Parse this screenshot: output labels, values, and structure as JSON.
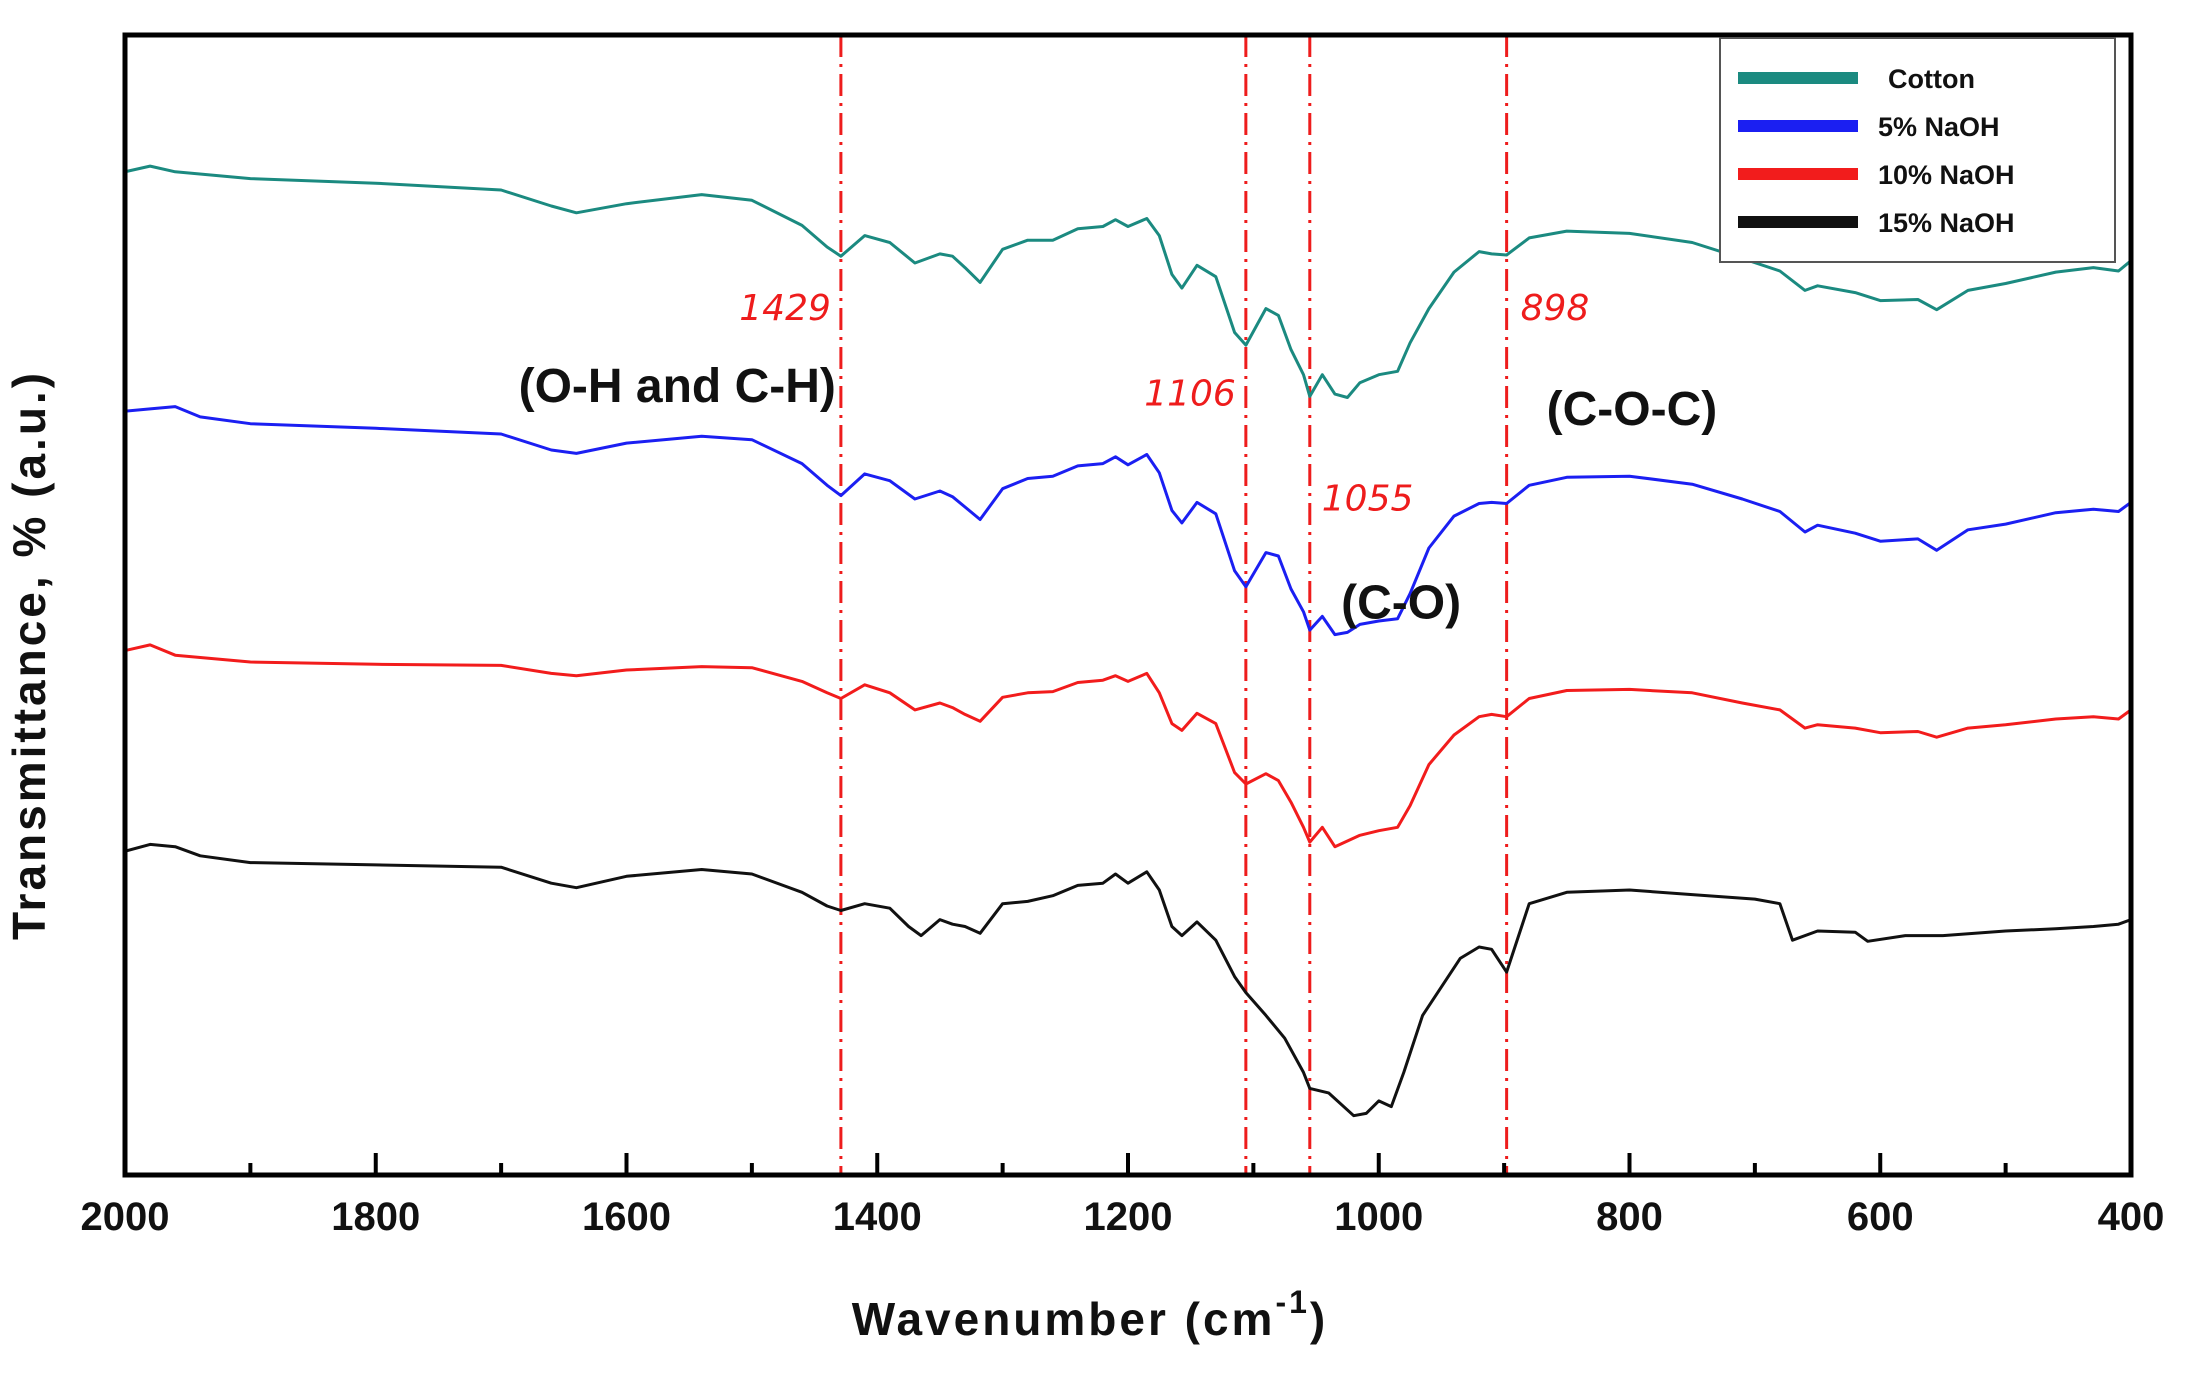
{
  "chart_data": {
    "type": "line",
    "title": "",
    "xlabel": "Wavenumber (cm",
    "xlabel_sup": "-1",
    "xlabel_close": ")",
    "ylabel": "Transmittance, % (a.u.)",
    "xlim": [
      2000,
      400
    ],
    "x_ticks": [
      2000,
      1800,
      1600,
      1400,
      1200,
      1000,
      800,
      600,
      400
    ],
    "x_tick_labels": [
      "2000",
      "1800",
      "1600",
      "1400",
      "1200",
      "1000",
      "800",
      "600",
      "400"
    ],
    "ylim": [
      0,
      100
    ],
    "y_ticks_shown": false,
    "legend_position": "top-right",
    "series": [
      {
        "name": "Cotton",
        "color": "#1b8a80",
        "points": [
          [
            2000,
            88
          ],
          [
            1980,
            88.5
          ],
          [
            1960,
            88
          ],
          [
            1900,
            87.4
          ],
          [
            1800,
            87
          ],
          [
            1700,
            86.4
          ],
          [
            1660,
            85
          ],
          [
            1640,
            84.4
          ],
          [
            1600,
            85.2
          ],
          [
            1540,
            86
          ],
          [
            1500,
            85.5
          ],
          [
            1460,
            83.3
          ],
          [
            1440,
            81.4
          ],
          [
            1429,
            80.6
          ],
          [
            1410,
            82.4
          ],
          [
            1390,
            81.8
          ],
          [
            1370,
            80
          ],
          [
            1350,
            80.8
          ],
          [
            1340,
            80.6
          ],
          [
            1330,
            79.6
          ],
          [
            1318,
            78.3
          ],
          [
            1300,
            81.2
          ],
          [
            1280,
            82
          ],
          [
            1260,
            82
          ],
          [
            1240,
            83
          ],
          [
            1220,
            83.2
          ],
          [
            1210,
            83.8
          ],
          [
            1200,
            83.2
          ],
          [
            1185,
            83.9
          ],
          [
            1175,
            82.4
          ],
          [
            1165,
            79
          ],
          [
            1157,
            77.8
          ],
          [
            1145,
            79.8
          ],
          [
            1130,
            78.8
          ],
          [
            1115,
            73.9
          ],
          [
            1106,
            72.8
          ],
          [
            1090,
            76
          ],
          [
            1080,
            75.4
          ],
          [
            1070,
            72.4
          ],
          [
            1060,
            70.2
          ],
          [
            1055,
            68.3
          ],
          [
            1045,
            70.2
          ],
          [
            1035,
            68.5
          ],
          [
            1025,
            68.2
          ],
          [
            1015,
            69.5
          ],
          [
            1000,
            70.2
          ],
          [
            985,
            70.5
          ],
          [
            975,
            73
          ],
          [
            960,
            76
          ],
          [
            940,
            79.2
          ],
          [
            920,
            81
          ],
          [
            910,
            80.8
          ],
          [
            898,
            80.7
          ],
          [
            880,
            82.2
          ],
          [
            850,
            82.8
          ],
          [
            800,
            82.6
          ],
          [
            750,
            81.8
          ],
          [
            710,
            80.4
          ],
          [
            680,
            79.3
          ],
          [
            660,
            77.6
          ],
          [
            650,
            78
          ],
          [
            620,
            77.4
          ],
          [
            600,
            76.7
          ],
          [
            570,
            76.8
          ],
          [
            555,
            75.9
          ],
          [
            530,
            77.6
          ],
          [
            500,
            78.2
          ],
          [
            460,
            79.2
          ],
          [
            430,
            79.6
          ],
          [
            410,
            79.3
          ],
          [
            400,
            80.2
          ]
        ]
      },
      {
        "name": "5% NaOH",
        "color": "#1b1ff2",
        "points": [
          [
            2000,
            67
          ],
          [
            1980,
            67.2
          ],
          [
            1960,
            67.4
          ],
          [
            1940,
            66.5
          ],
          [
            1900,
            65.9
          ],
          [
            1800,
            65.5
          ],
          [
            1700,
            65
          ],
          [
            1660,
            63.6
          ],
          [
            1640,
            63.3
          ],
          [
            1600,
            64.2
          ],
          [
            1540,
            64.8
          ],
          [
            1500,
            64.5
          ],
          [
            1460,
            62.4
          ],
          [
            1440,
            60.5
          ],
          [
            1429,
            59.6
          ],
          [
            1410,
            61.5
          ],
          [
            1390,
            60.9
          ],
          [
            1370,
            59.3
          ],
          [
            1350,
            60
          ],
          [
            1340,
            59.5
          ],
          [
            1330,
            58.6
          ],
          [
            1318,
            57.5
          ],
          [
            1300,
            60.2
          ],
          [
            1280,
            61.1
          ],
          [
            1260,
            61.3
          ],
          [
            1240,
            62.2
          ],
          [
            1220,
            62.4
          ],
          [
            1210,
            63
          ],
          [
            1200,
            62.3
          ],
          [
            1185,
            63.2
          ],
          [
            1175,
            61.6
          ],
          [
            1165,
            58.3
          ],
          [
            1157,
            57.2
          ],
          [
            1145,
            59
          ],
          [
            1130,
            58
          ],
          [
            1115,
            53
          ],
          [
            1106,
            51.6
          ],
          [
            1090,
            54.6
          ],
          [
            1080,
            54.3
          ],
          [
            1070,
            51.4
          ],
          [
            1060,
            49.4
          ],
          [
            1055,
            47.8
          ],
          [
            1045,
            49
          ],
          [
            1035,
            47.4
          ],
          [
            1025,
            47.6
          ],
          [
            1015,
            48.3
          ],
          [
            1000,
            48.6
          ],
          [
            985,
            48.8
          ],
          [
            975,
            51
          ],
          [
            960,
            55
          ],
          [
            940,
            57.8
          ],
          [
            920,
            58.9
          ],
          [
            910,
            59
          ],
          [
            898,
            58.9
          ],
          [
            880,
            60.5
          ],
          [
            850,
            61.2
          ],
          [
            800,
            61.3
          ],
          [
            750,
            60.6
          ],
          [
            710,
            59.3
          ],
          [
            680,
            58.2
          ],
          [
            660,
            56.4
          ],
          [
            650,
            57
          ],
          [
            620,
            56.3
          ],
          [
            600,
            55.6
          ],
          [
            570,
            55.8
          ],
          [
            555,
            54.8
          ],
          [
            530,
            56.6
          ],
          [
            500,
            57.1
          ],
          [
            460,
            58.1
          ],
          [
            430,
            58.4
          ],
          [
            410,
            58.2
          ],
          [
            400,
            59
          ]
        ]
      },
      {
        "name": "10% NaOH",
        "color": "#f21c1c",
        "points": [
          [
            2000,
            46
          ],
          [
            1980,
            46.5
          ],
          [
            1960,
            45.6
          ],
          [
            1900,
            45
          ],
          [
            1800,
            44.8
          ],
          [
            1700,
            44.7
          ],
          [
            1660,
            44
          ],
          [
            1640,
            43.8
          ],
          [
            1600,
            44.3
          ],
          [
            1540,
            44.6
          ],
          [
            1500,
            44.5
          ],
          [
            1460,
            43.3
          ],
          [
            1440,
            42.3
          ],
          [
            1429,
            41.8
          ],
          [
            1410,
            43
          ],
          [
            1390,
            42.3
          ],
          [
            1370,
            40.8
          ],
          [
            1350,
            41.4
          ],
          [
            1340,
            41
          ],
          [
            1330,
            40.4
          ],
          [
            1318,
            39.8
          ],
          [
            1300,
            41.9
          ],
          [
            1280,
            42.3
          ],
          [
            1260,
            42.4
          ],
          [
            1240,
            43.2
          ],
          [
            1220,
            43.4
          ],
          [
            1210,
            43.8
          ],
          [
            1200,
            43.3
          ],
          [
            1185,
            44
          ],
          [
            1175,
            42.3
          ],
          [
            1165,
            39.6
          ],
          [
            1157,
            39
          ],
          [
            1145,
            40.5
          ],
          [
            1130,
            39.6
          ],
          [
            1115,
            35.3
          ],
          [
            1106,
            34.3
          ],
          [
            1090,
            35.2
          ],
          [
            1080,
            34.6
          ],
          [
            1070,
            32.7
          ],
          [
            1060,
            30.5
          ],
          [
            1055,
            29.2
          ],
          [
            1045,
            30.5
          ],
          [
            1035,
            28.8
          ],
          [
            1025,
            29.3
          ],
          [
            1015,
            29.8
          ],
          [
            1000,
            30.2
          ],
          [
            985,
            30.5
          ],
          [
            975,
            32.4
          ],
          [
            960,
            36
          ],
          [
            940,
            38.6
          ],
          [
            920,
            40.2
          ],
          [
            910,
            40.4
          ],
          [
            898,
            40.2
          ],
          [
            880,
            41.8
          ],
          [
            850,
            42.5
          ],
          [
            800,
            42.6
          ],
          [
            750,
            42.3
          ],
          [
            710,
            41.4
          ],
          [
            680,
            40.8
          ],
          [
            660,
            39.2
          ],
          [
            650,
            39.5
          ],
          [
            620,
            39.2
          ],
          [
            600,
            38.8
          ],
          [
            570,
            38.9
          ],
          [
            555,
            38.4
          ],
          [
            530,
            39.2
          ],
          [
            500,
            39.5
          ],
          [
            460,
            40
          ],
          [
            430,
            40.2
          ],
          [
            410,
            40
          ],
          [
            400,
            40.8
          ]
        ]
      },
      {
        "name": "15% NaOH",
        "color": "#111111",
        "points": [
          [
            2000,
            28.4
          ],
          [
            1980,
            29
          ],
          [
            1960,
            28.8
          ],
          [
            1940,
            28
          ],
          [
            1900,
            27.4
          ],
          [
            1800,
            27.2
          ],
          [
            1700,
            27
          ],
          [
            1660,
            25.6
          ],
          [
            1640,
            25.2
          ],
          [
            1600,
            26.2
          ],
          [
            1540,
            26.8
          ],
          [
            1500,
            26.4
          ],
          [
            1460,
            24.8
          ],
          [
            1440,
            23.6
          ],
          [
            1429,
            23.2
          ],
          [
            1410,
            23.8
          ],
          [
            1390,
            23.4
          ],
          [
            1375,
            21.8
          ],
          [
            1365,
            21
          ],
          [
            1350,
            22.4
          ],
          [
            1340,
            22
          ],
          [
            1330,
            21.8
          ],
          [
            1318,
            21.2
          ],
          [
            1300,
            23.8
          ],
          [
            1280,
            24
          ],
          [
            1260,
            24.5
          ],
          [
            1240,
            25.4
          ],
          [
            1220,
            25.6
          ],
          [
            1210,
            26.4
          ],
          [
            1200,
            25.6
          ],
          [
            1185,
            26.6
          ],
          [
            1175,
            25
          ],
          [
            1165,
            21.8
          ],
          [
            1157,
            21
          ],
          [
            1145,
            22.2
          ],
          [
            1130,
            20.6
          ],
          [
            1115,
            17.4
          ],
          [
            1106,
            16
          ],
          [
            1090,
            14
          ],
          [
            1075,
            12
          ],
          [
            1060,
            9
          ],
          [
            1055,
            7.6
          ],
          [
            1040,
            7.2
          ],
          [
            1020,
            5.2
          ],
          [
            1010,
            5.4
          ],
          [
            1000,
            6.5
          ],
          [
            990,
            6
          ],
          [
            980,
            9
          ],
          [
            965,
            14
          ],
          [
            950,
            16.5
          ],
          [
            935,
            19
          ],
          [
            920,
            20
          ],
          [
            910,
            19.8
          ],
          [
            898,
            17.8
          ],
          [
            880,
            23.8
          ],
          [
            850,
            24.8
          ],
          [
            800,
            25
          ],
          [
            750,
            24.6
          ],
          [
            700,
            24.2
          ],
          [
            680,
            23.8
          ],
          [
            670,
            20.6
          ],
          [
            650,
            21.4
          ],
          [
            620,
            21.3
          ],
          [
            610,
            20.5
          ],
          [
            580,
            21
          ],
          [
            550,
            21
          ],
          [
            500,
            21.4
          ],
          [
            460,
            21.6
          ],
          [
            430,
            21.8
          ],
          [
            410,
            22
          ],
          [
            400,
            22.4
          ]
        ]
      }
    ],
    "reference_lines": [
      1429,
      1106,
      1055,
      898
    ],
    "peak_labels": [
      {
        "text": "1429",
        "x": 1429,
        "y": 75
      },
      {
        "text": "1106",
        "x": 1106,
        "y": 67.5
      },
      {
        "text": "1055",
        "x": 1055,
        "y": 58.3
      },
      {
        "text": "898",
        "x": 898,
        "y": 75
      }
    ],
    "annotations": [
      {
        "text": "(O-H and C-H)",
        "x": 1429,
        "y": 67.8
      },
      {
        "text": "(C-O)",
        "x": 1030,
        "y": 48.8
      },
      {
        "text": "(C-O-C)",
        "x": 898,
        "y": 65.8
      }
    ]
  }
}
